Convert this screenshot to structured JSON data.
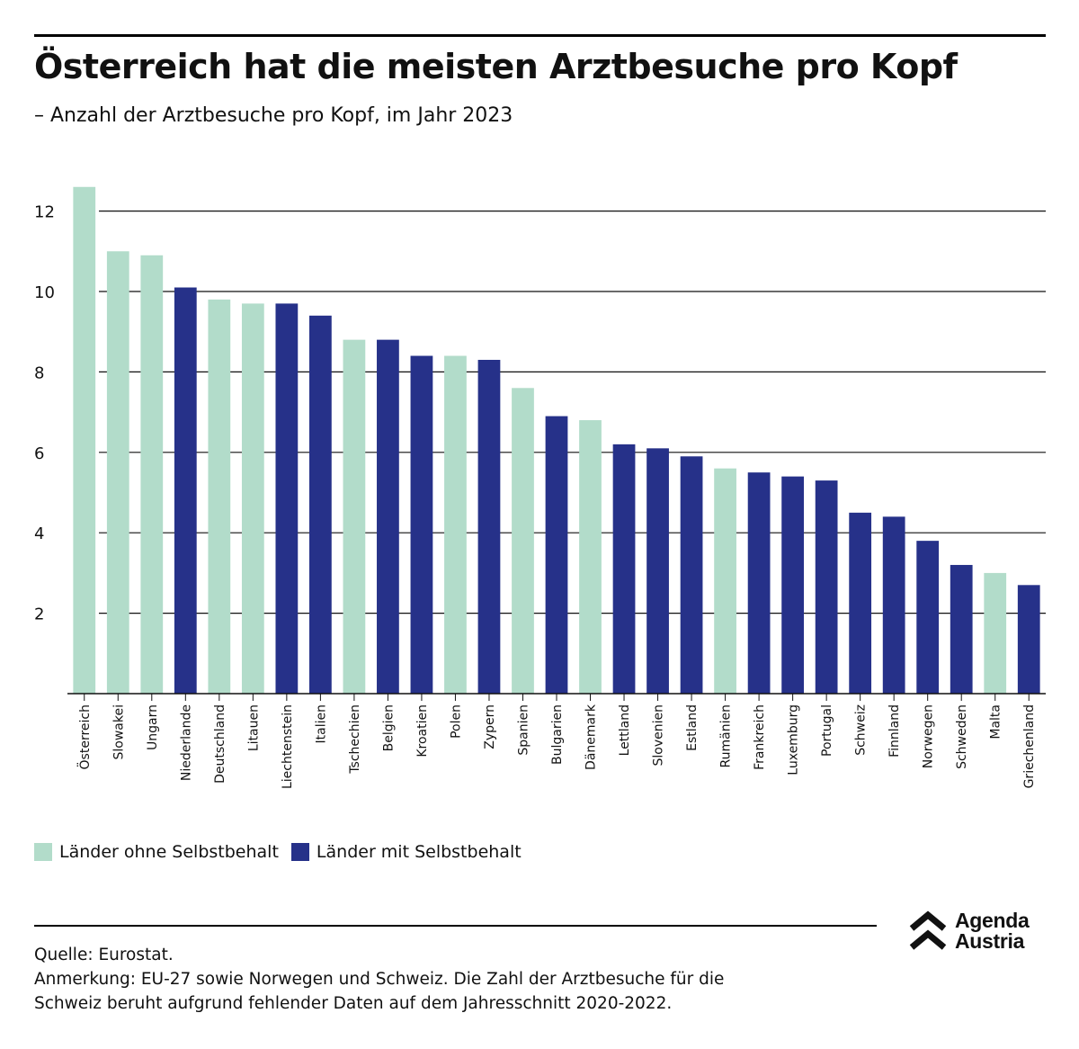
{
  "header": {
    "title": "Österreich hat die meisten Arztbesuche pro Kopf",
    "subtitle": "– Anzahl der Arztbesuche pro Kopf, im Jahr 2023"
  },
  "legend": {
    "without_label": "Länder ohne Selbstbehalt",
    "with_label": "Länder mit Selbstbehalt"
  },
  "colors": {
    "without": "#b2dcca",
    "with": "#263189",
    "gridline": "#111111"
  },
  "footer": {
    "source": "Quelle: Eurostat.",
    "note_line1": "Anmerkung: EU-27 sowie Norwegen und Schweiz. Die Zahl der Arztbesuche für die",
    "note_line2": "Schweiz beruht aufgrund fehlender Daten auf dem Jahresschnitt 2020-2022."
  },
  "logo": {
    "line1": "Agenda",
    "line2": "Austria"
  },
  "chart_data": {
    "type": "bar",
    "title": "Österreich hat die meisten Arztbesuche pro Kopf",
    "subtitle": "– Anzahl der Arztbesuche pro Kopf, im Jahr 2023",
    "categories": [
      "Österreich",
      "Slowakei",
      "Ungarn",
      "Niederlande",
      "Deutschland",
      "Litauen",
      "Liechtenstein",
      "Italien",
      "Tschechien",
      "Belgien",
      "Kroatien",
      "Polen",
      "Zypern",
      "Spanien",
      "Bulgarien",
      "Dänemark",
      "Lettland",
      "Slovenien",
      "Estland",
      "Rumänien",
      "Frankreich",
      "Luxemburg",
      "Portugal",
      "Schweiz",
      "Finnland",
      "Norwegen",
      "Schweden",
      "Malta",
      "Griechenland"
    ],
    "values": [
      12.6,
      11.0,
      10.9,
      10.1,
      9.8,
      9.7,
      9.7,
      9.4,
      8.8,
      8.8,
      8.4,
      8.4,
      8.3,
      7.6,
      6.9,
      6.8,
      6.2,
      6.1,
      5.9,
      5.6,
      5.5,
      5.4,
      5.3,
      4.5,
      4.4,
      3.8,
      3.2,
      3.0,
      2.7
    ],
    "groups": [
      "ohne",
      "ohne",
      "ohne",
      "mit",
      "ohne",
      "ohne",
      "mit",
      "mit",
      "ohne",
      "mit",
      "mit",
      "ohne",
      "mit",
      "ohne",
      "mit",
      "ohne",
      "mit",
      "mit",
      "mit",
      "ohne",
      "mit",
      "mit",
      "mit",
      "mit",
      "mit",
      "mit",
      "mit",
      "ohne",
      "mit"
    ],
    "series": [
      {
        "name": "Länder ohne Selbstbehalt",
        "key": "ohne",
        "color": "#b2dcca"
      },
      {
        "name": "Länder mit Selbstbehalt",
        "key": "mit",
        "color": "#263189"
      }
    ],
    "yticks": [
      2,
      4,
      6,
      8,
      10,
      12
    ],
    "ylim": [
      0,
      12.8
    ],
    "xlabel": "",
    "ylabel": "",
    "grid": true,
    "legend_position": "bottom-left"
  }
}
